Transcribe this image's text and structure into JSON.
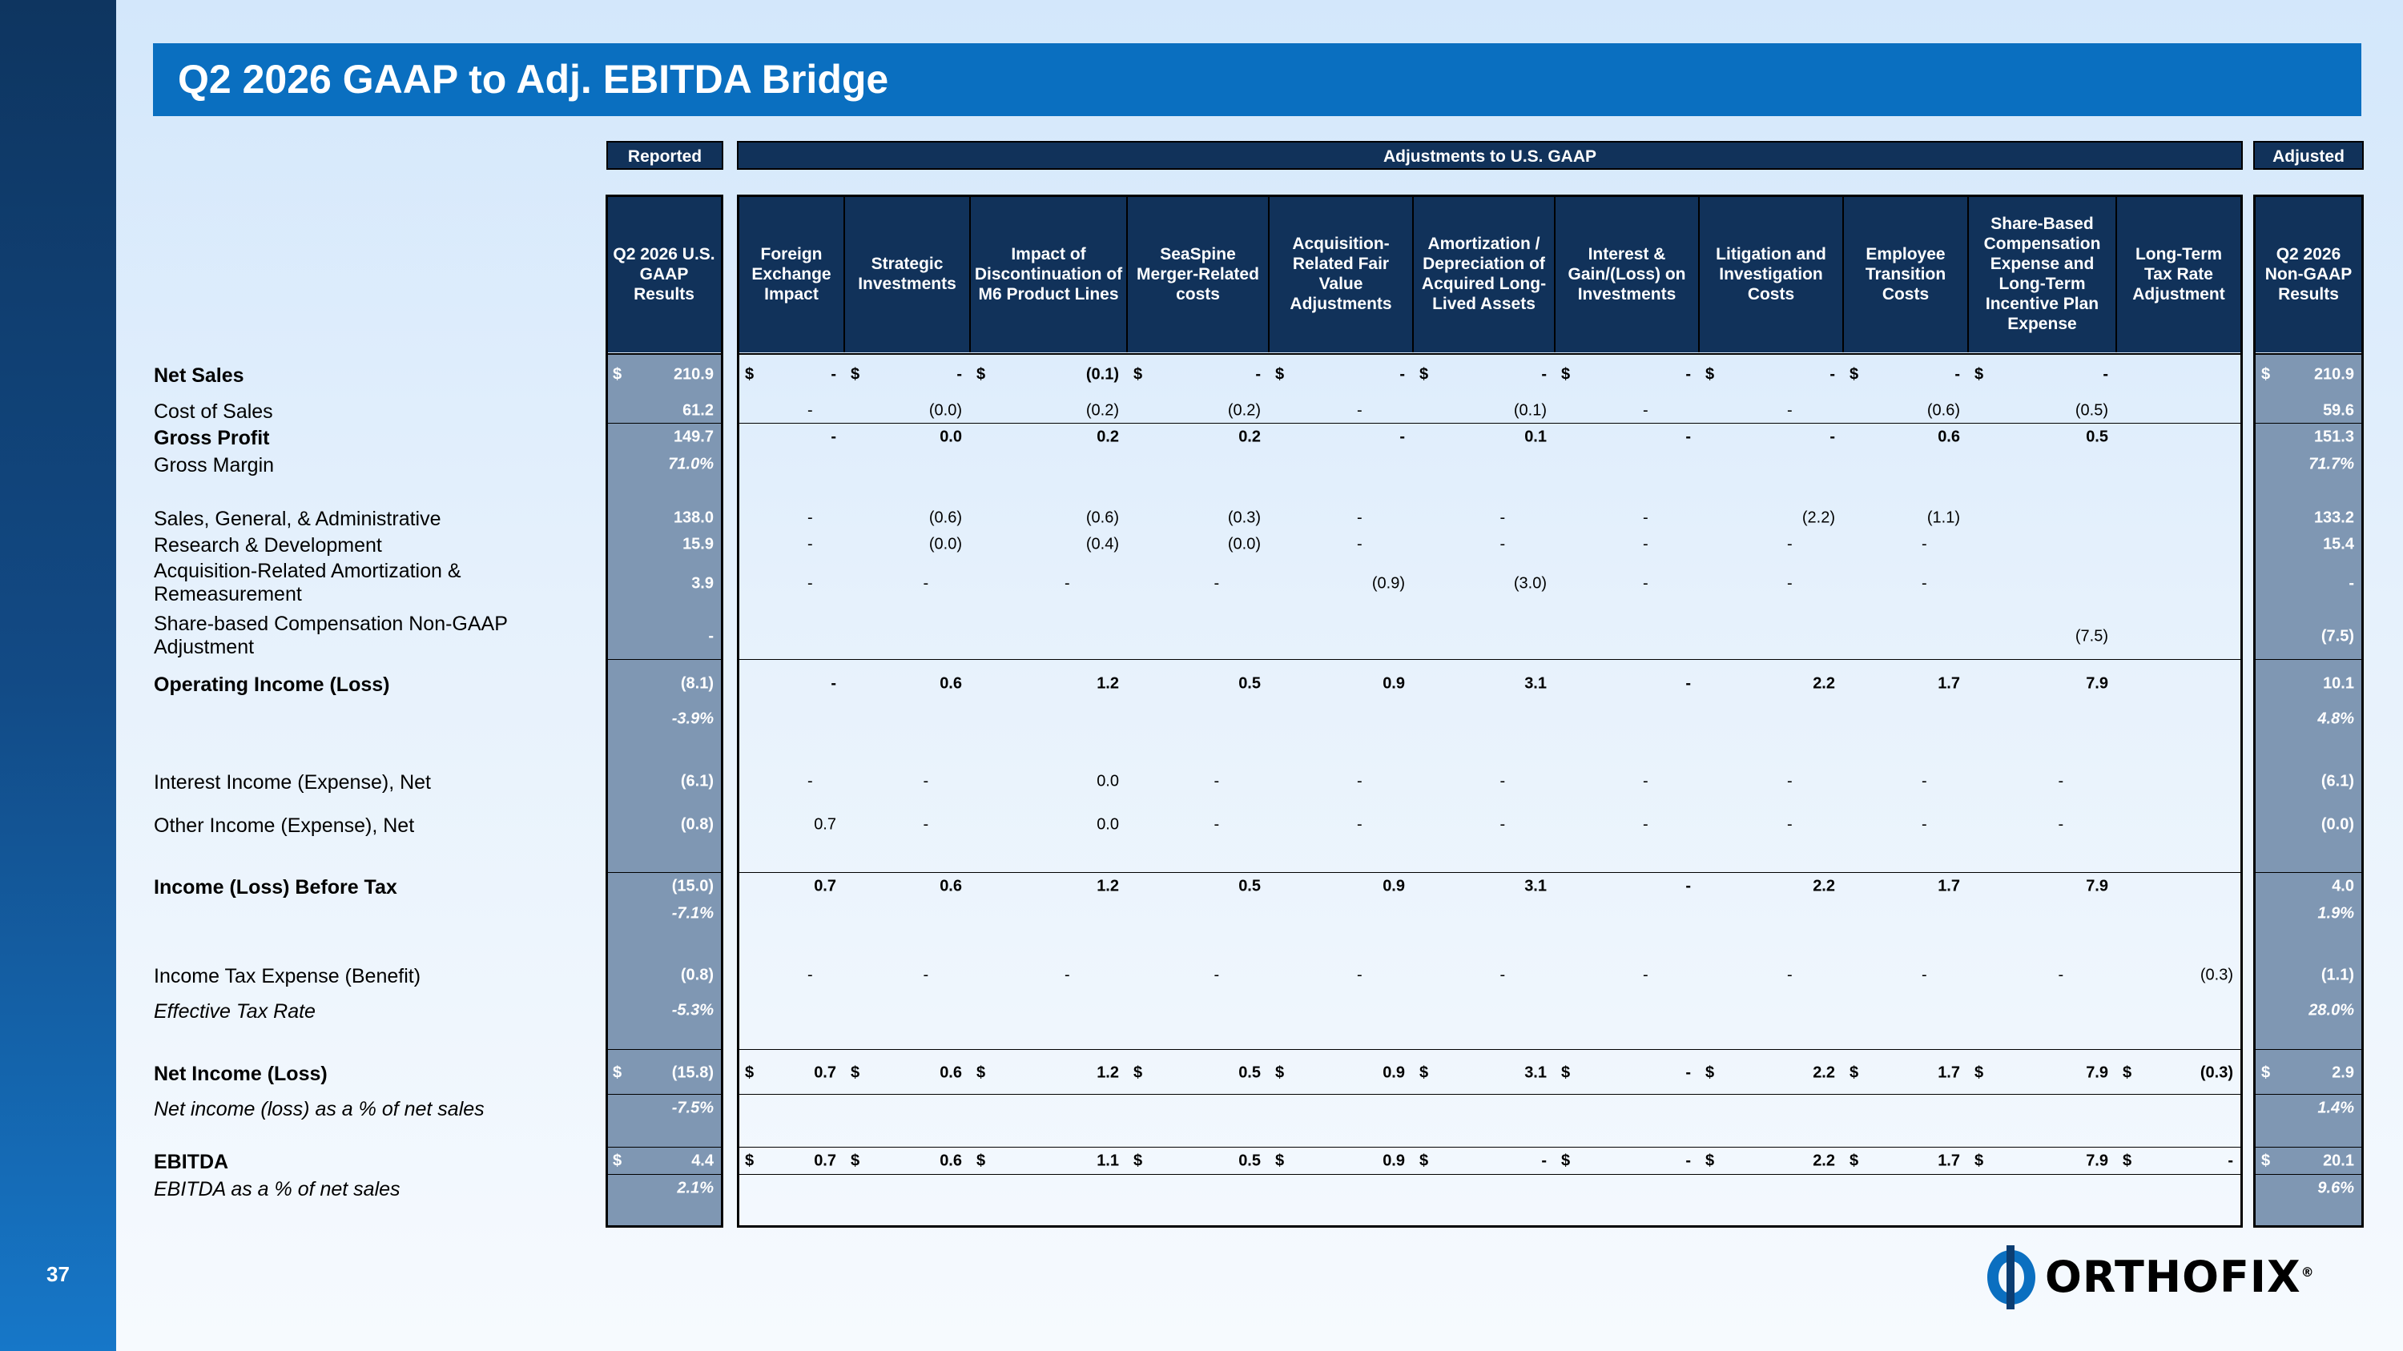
{
  "page_number": "37",
  "title": "Q2 2026 GAAP to Adj. EBITDA Bridge",
  "groups": {
    "reported": "Reported",
    "adjustments": "Adjustments to U.S. GAAP",
    "adjusted": "Adjusted"
  },
  "columns": [
    "Q2 2026 U.S. GAAP Results",
    "Foreign Exchange Impact",
    "Strategic Investments",
    "Impact of Discontinuation of M6 Product Lines",
    "SeaSpine Merger-Related costs",
    "Acquisition-Related Fair Value Adjustments",
    "Amortization / Depreciation of Acquired Long-Lived Assets",
    "Interest & Gain/(Loss) on Investments",
    "Litigation and Investigation Costs",
    "Employee Transition Costs",
    "Share-Based Compensation Expense and Long-Term Incentive Plan Expense",
    "Long-Term Tax Rate Adjustment",
    "Q2 2026 Non-GAAP Results"
  ],
  "rows": [
    {
      "label": "Net Sales",
      "bold": true,
      "dollar": true,
      "values": [
        "210.9",
        "-",
        "-",
        "(0.1)",
        "-",
        "-",
        "-",
        "-",
        "-",
        "-",
        "-",
        "",
        "210.9"
      ]
    },
    {
      "label": "Cost of Sales",
      "values": [
        "61.2",
        "-",
        "(0.0)",
        "(0.2)",
        "(0.2)",
        "-",
        "(0.1)",
        "-",
        "-",
        "(0.6)",
        "(0.5)",
        "",
        "59.6"
      ]
    },
    {
      "label": "Gross Profit",
      "bold": true,
      "values": [
        "149.7",
        "-",
        "0.0",
        "0.2",
        "0.2",
        "-",
        "0.1",
        "-",
        "-",
        "0.6",
        "0.5",
        "",
        "151.3"
      ]
    },
    {
      "label": "Gross Margin",
      "values": [
        "71.0%",
        "",
        "",
        "",
        "",
        "",
        "",
        "",
        "",
        "",
        "",
        "",
        "71.7%"
      ]
    },
    {
      "label": "Sales, General, & Administrative",
      "values": [
        "138.0",
        "-",
        "(0.6)",
        "(0.6)",
        "(0.3)",
        "-",
        "-",
        "-",
        "(2.2)",
        "(1.1)",
        "",
        "",
        "133.2"
      ]
    },
    {
      "label": "Research & Development",
      "values": [
        "15.9",
        "-",
        "(0.0)",
        "(0.4)",
        "(0.0)",
        "-",
        "-",
        "-",
        "-",
        "-",
        "",
        "",
        "15.4"
      ]
    },
    {
      "label": "Acquisition-Related Amortization & Remeasurement",
      "values": [
        "3.9",
        "-",
        "-",
        "-",
        "-",
        "(0.9)",
        "(3.0)",
        "-",
        "-",
        "-",
        "",
        "",
        "-"
      ]
    },
    {
      "label": "Share-based Compensation Non-GAAP Adjustment",
      "values": [
        "-",
        "",
        "",
        "",
        "",
        "",
        "",
        "",
        "",
        "",
        "(7.5)",
        "",
        "(7.5)"
      ]
    },
    {
      "label": "Operating Income (Loss)",
      "bold": true,
      "values": [
        "(8.1)",
        "-",
        "0.6",
        "1.2",
        "0.5",
        "0.9",
        "3.1",
        "-",
        "2.2",
        "1.7",
        "7.9",
        "",
        "10.1"
      ]
    },
    {
      "label": "",
      "values": [
        "-3.9%",
        "",
        "",
        "",
        "",
        "",
        "",
        "",
        "",
        "",
        "",
        "",
        "4.8%"
      ]
    },
    {
      "label": "Interest Income (Expense), Net",
      "values": [
        "(6.1)",
        "-",
        "-",
        "0.0",
        "-",
        "-",
        "-",
        "-",
        "-",
        "-",
        "-",
        "",
        "(6.1)"
      ]
    },
    {
      "label": "Other Income (Expense), Net",
      "values": [
        "(0.8)",
        "0.7",
        "-",
        "0.0",
        "-",
        "-",
        "-",
        "-",
        "-",
        "-",
        "-",
        "",
        "(0.0)"
      ]
    },
    {
      "label": "Income (Loss) Before Tax",
      "bold": true,
      "values": [
        "(15.0)",
        "0.7",
        "0.6",
        "1.2",
        "0.5",
        "0.9",
        "3.1",
        "-",
        "2.2",
        "1.7",
        "7.9",
        "",
        "4.0"
      ]
    },
    {
      "label": "",
      "values": [
        "-7.1%",
        "",
        "",
        "",
        "",
        "",
        "",
        "",
        "",
        "",
        "",
        "",
        "1.9%"
      ]
    },
    {
      "label": "Income Tax Expense (Benefit)",
      "values": [
        "(0.8)",
        "-",
        "-",
        "-",
        "-",
        "-",
        "-",
        "-",
        "-",
        "-",
        "-",
        "(0.3)",
        "(1.1)"
      ]
    },
    {
      "label": "Effective Tax Rate",
      "italic": true,
      "values": [
        "-5.3%",
        "",
        "",
        "",
        "",
        "",
        "",
        "",
        "",
        "",
        "",
        "",
        "28.0%"
      ]
    },
    {
      "label": "Net Income (Loss)",
      "bold": true,
      "dollar": true,
      "values": [
        "(15.8)",
        "0.7",
        "0.6",
        "1.2",
        "0.5",
        "0.9",
        "3.1",
        "-",
        "2.2",
        "1.7",
        "7.9",
        "(0.3)",
        "2.9"
      ]
    },
    {
      "label": "Net income (loss) as a % of net sales",
      "italic": true,
      "values": [
        "-7.5%",
        "",
        "",
        "",
        "",
        "",
        "",
        "",
        "",
        "",
        "",
        "",
        "1.4%"
      ]
    },
    {
      "label": "EBITDA",
      "bold": true,
      "dollar": true,
      "values": [
        "4.4",
        "0.7",
        "0.6",
        "1.1",
        "0.5",
        "0.9",
        "-",
        "-",
        "2.2",
        "1.7",
        "7.9",
        "-",
        "20.1"
      ]
    },
    {
      "label": "EBITDA as a % of net sales",
      "italic": true,
      "values": [
        "2.1%",
        "",
        "",
        "",
        "",
        "",
        "",
        "",
        "",
        "",
        "",
        "",
        "9.6%"
      ]
    }
  ],
  "dollar_sign": "$",
  "logo": {
    "text": "ORTHOFIX",
    "trademark": "®"
  },
  "colors": {
    "title_bar": "#0a6fc0",
    "header_navy": "#11325a",
    "shaded_column": "#7f97b3",
    "sidebar": "#124a85"
  }
}
